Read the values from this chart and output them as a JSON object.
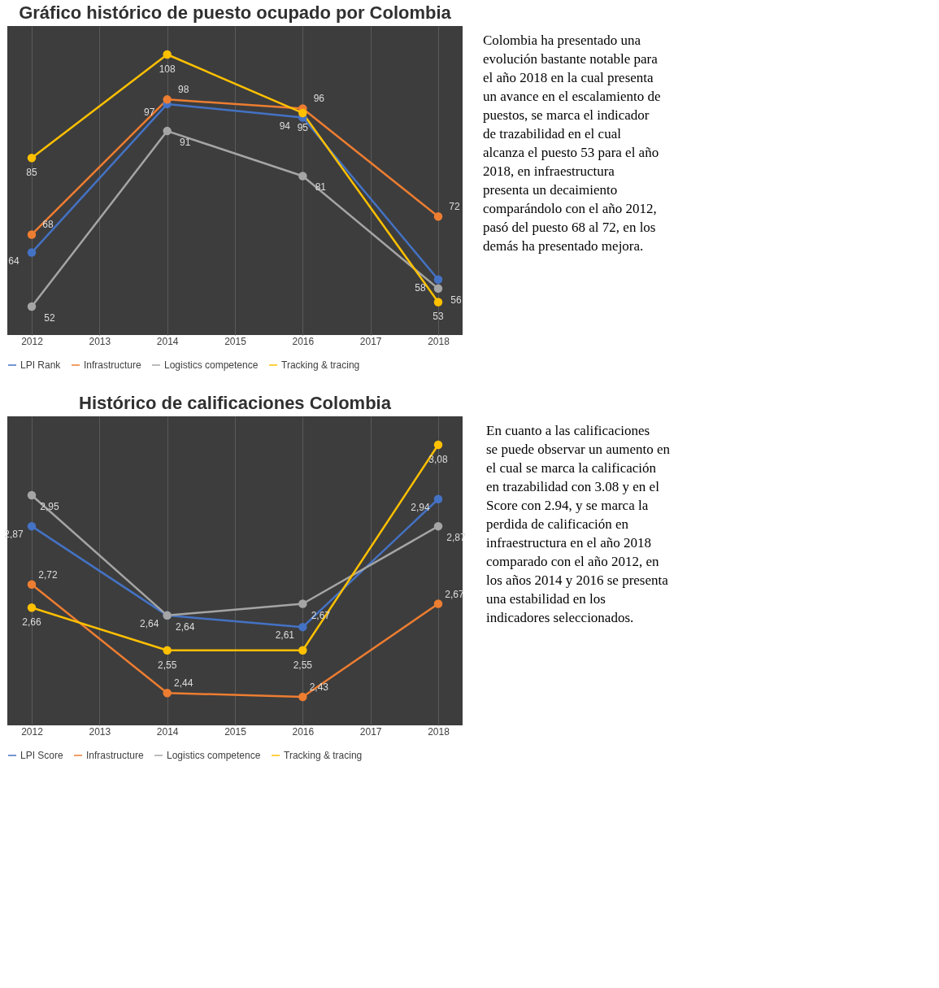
{
  "chart_data": [
    {
      "type": "line",
      "title": "Gráfico histórico de puesto ocupado por Colombia",
      "x": [
        2012,
        2014,
        2016,
        2018
      ],
      "xlim": [
        2012,
        2018
      ],
      "xticks": [
        2012,
        2013,
        2014,
        2015,
        2016,
        2017,
        2018
      ],
      "grid": "x",
      "legend": "bottom",
      "marker": "circle",
      "tick_labels": "x",
      "data_labels": true,
      "series": [
        {
          "name": "LPI Rank",
          "color": "#4472c4",
          "values": [
            64,
            97,
            94,
            58
          ]
        },
        {
          "name": "Infrastructure",
          "color": "#ed7d31",
          "values": [
            68,
            98,
            96,
            72
          ]
        },
        {
          "name": "Logistics competence",
          "color": "#a5a5a5",
          "values": [
            52,
            91,
            81,
            56
          ]
        },
        {
          "name": "Tracking & tracing",
          "color": "#ffc000",
          "values": [
            85,
            108,
            95,
            53
          ]
        }
      ],
      "annotations": [
        "Colombia ha presentado una evolución bastante notable para el año 2018 en la cual presenta un avance en el escalamiento de puestos, se marca el indicador de trazabilidad en el cual alcanza el puesto 53 para el año 2018, en infraestructura presenta un decaimiento comparándolo con el año 2012, pasó del puesto 68 al 72, en los demás ha presentado mejora."
      ]
    },
    {
      "type": "line",
      "title": "Histórico de calificaciones Colombia",
      "x": [
        2012,
        2014,
        2016,
        2018
      ],
      "xlim": [
        2012,
        2018
      ],
      "xticks": [
        2012,
        2013,
        2014,
        2015,
        2016,
        2017,
        2018
      ],
      "grid": "x",
      "legend": "bottom",
      "marker": "circle",
      "tick_labels": "x",
      "series": [
        {
          "name": "LPI Score",
          "color": "#4472c4",
          "values": [
            2.87,
            2.64,
            2.61,
            2.94
          ],
          "value_labels": [
            "2,87",
            "2,64",
            "2,61",
            "2,94"
          ]
        },
        {
          "name": "Infrastructure",
          "color": "#ed7d31",
          "values": [
            2.72,
            2.44,
            2.43,
            2.67
          ],
          "value_labels": [
            "2,72",
            "2,44",
            "2,43",
            "2,67"
          ]
        },
        {
          "name": "Logistics competence",
          "color": "#a5a5a5",
          "values": [
            2.95,
            2.64,
            2.67,
            2.87
          ],
          "value_labels": [
            "2,95",
            "2,64",
            "2,67",
            "2,87"
          ]
        },
        {
          "name": "Tracking & tracing",
          "color": "#ffc000",
          "values": [
            2.66,
            2.55,
            2.55,
            3.08
          ],
          "value_labels": [
            "2,66",
            "2,55",
            "2,55",
            "3,08"
          ]
        }
      ],
      "annotations": [
        "En cuanto a las calificaciones se puede observar un aumento en el cual se marca la calificación en trazabilidad con 3.08 y en el Score con 2.94, y se marca la perdida de calificación en infraestructura en el año 2018 comparado con el año 2012, en los años 2014 y 2016 se presenta una estabilidad en los indicadores seleccionados."
      ]
    }
  ]
}
